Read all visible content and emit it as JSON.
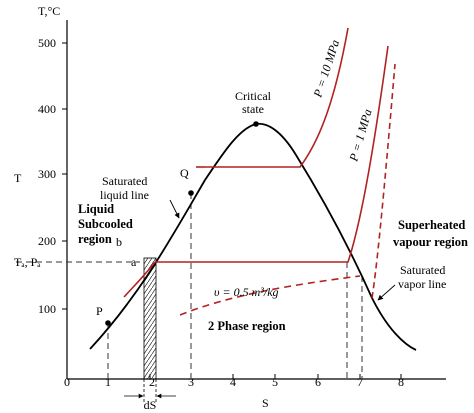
{
  "axes": {
    "y_title": "T,°C",
    "x_title": "S",
    "y_letter": "T",
    "y_ticks": [
      "100",
      "200",
      "300",
      "400",
      "500"
    ],
    "x_ticks": [
      "0",
      "1",
      "2",
      "3",
      "4",
      "5",
      "6",
      "7",
      "8"
    ]
  },
  "labels": {
    "critical_state_1": "Critical",
    "critical_state_2": "state",
    "saturated_liquid_1": "Saturated",
    "saturated_liquid_2": "liquid line",
    "subcooled_1": "Liquid",
    "subcooled_2": "Subcooled",
    "subcooled_3": "region",
    "superheated_1": "Superheated",
    "superheated_2": "vapour region",
    "saturated_vapor_1": "Saturated",
    "saturated_vapor_2": "vapor line",
    "two_phase": "2 Phase region",
    "specific_volume": "υ = 0.5 m³/kg",
    "pressure_high": "P = 10 MPa",
    "pressure_low": "P = 1 MPa",
    "point_q": "Q",
    "point_b": "b",
    "point_a": "a",
    "point_p": "P",
    "state_a": "Tₐ, Pₐ",
    "ds": "dS"
  },
  "colors": {
    "curve": "#000000",
    "isobar": "#b22222",
    "dashed": "#333333"
  }
}
